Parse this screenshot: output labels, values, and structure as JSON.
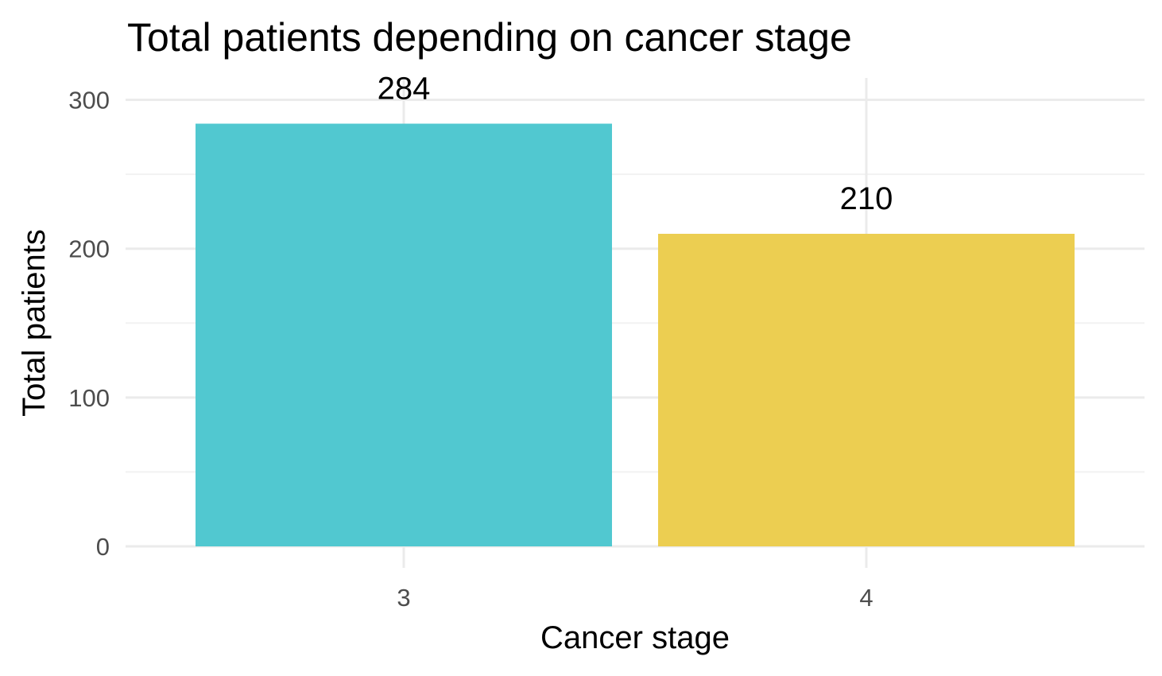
{
  "chart_data": {
    "type": "bar",
    "title": "Total patients depending on cancer stage",
    "xlabel": "Cancer stage",
    "ylabel": "Total patients",
    "categories": [
      "3",
      "4"
    ],
    "values": [
      284,
      210
    ],
    "data_labels": [
      "284",
      "210"
    ],
    "colors": [
      "#4BC6CE",
      "#EBCC4B"
    ],
    "ylim": [
      0,
      315
    ],
    "yticks": [
      0,
      100,
      200,
      300
    ],
    "ytick_labels": [
      "0",
      "100",
      "200",
      "300"
    ],
    "grid": true,
    "legend": "none"
  }
}
